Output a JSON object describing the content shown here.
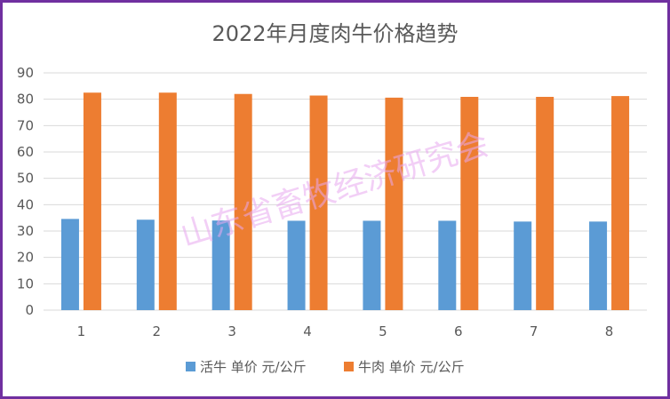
{
  "chart_data": {
    "type": "bar",
    "title": "2022年月度肉牛价格趋势",
    "xlabel": "",
    "ylabel": "",
    "categories": [
      "1",
      "2",
      "3",
      "4",
      "5",
      "6",
      "7",
      "8"
    ],
    "series": [
      {
        "name": "活牛 单价 元/公斤",
        "color": "#5b9bd5",
        "values": [
          34.6,
          34.3,
          34.0,
          33.9,
          33.9,
          33.9,
          33.6,
          33.6
        ]
      },
      {
        "name": "牛肉 单价 元/公斤",
        "color": "#ed7d31",
        "values": [
          82.5,
          82.5,
          82.0,
          81.4,
          80.6,
          80.9,
          80.9,
          81.2
        ]
      }
    ],
    "ylim": [
      0,
      90
    ],
    "yticks": [
      0,
      10,
      20,
      30,
      40,
      50,
      60,
      70,
      80,
      90
    ],
    "grid": true,
    "legend_position": "bottom"
  },
  "watermark": "山东省畜牧经济研究会",
  "colors": {
    "frame": "#7030a0",
    "gridline": "#d9d9d9",
    "text": "#595959"
  }
}
